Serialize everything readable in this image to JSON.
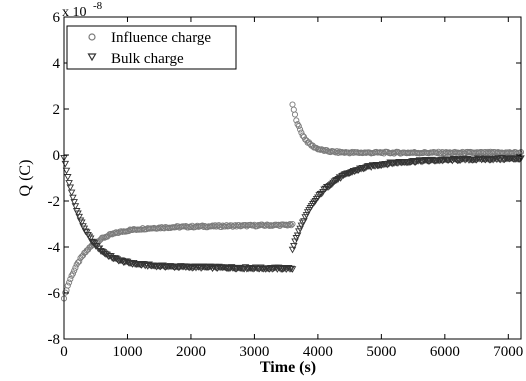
{
  "chart_data": {
    "type": "scatter",
    "title": "",
    "xlabel": "Time (s)",
    "ylabel": "Q (C)",
    "y_exponent_base": "x 10",
    "y_exponent_power": "-8",
    "xlim": [
      0,
      7200
    ],
    "ylim": [
      -8,
      6
    ],
    "x_ticks": [
      0,
      1000,
      2000,
      3000,
      4000,
      5000,
      6000,
      7000
    ],
    "y_ticks": [
      -8,
      -6,
      -4,
      -2,
      0,
      2,
      4,
      6
    ],
    "grid": false,
    "legend_position": "top-left",
    "series": [
      {
        "name": "Influence charge",
        "marker": "circle",
        "color": "#7a7a7a",
        "segments": [
          {
            "x_start": 0,
            "x_end": 3600,
            "model": "rise",
            "y_start": -6.2,
            "y_asymptote": -3.2,
            "tau": 320,
            "slope_per_1000": 0.045
          },
          {
            "x_start": 3600,
            "x_end": 7200,
            "model": "decay",
            "y_start": 2.2,
            "y_asymptote": 0.1,
            "tau": 160
          }
        ]
      },
      {
        "name": "Bulk charge",
        "marker": "triangle-down",
        "color": "#333333",
        "segments": [
          {
            "x_start": 0,
            "x_end": 3600,
            "model": "decay",
            "y_start": -0.1,
            "y_asymptote": -4.8,
            "tau": 300,
            "slope_per_1000": -0.04
          },
          {
            "x_start": 3600,
            "x_end": 7200,
            "model": "rise",
            "y_start": -4.1,
            "y_asymptote": -0.3,
            "tau": 450,
            "slope_per_1000": 0.04
          }
        ]
      }
    ]
  }
}
